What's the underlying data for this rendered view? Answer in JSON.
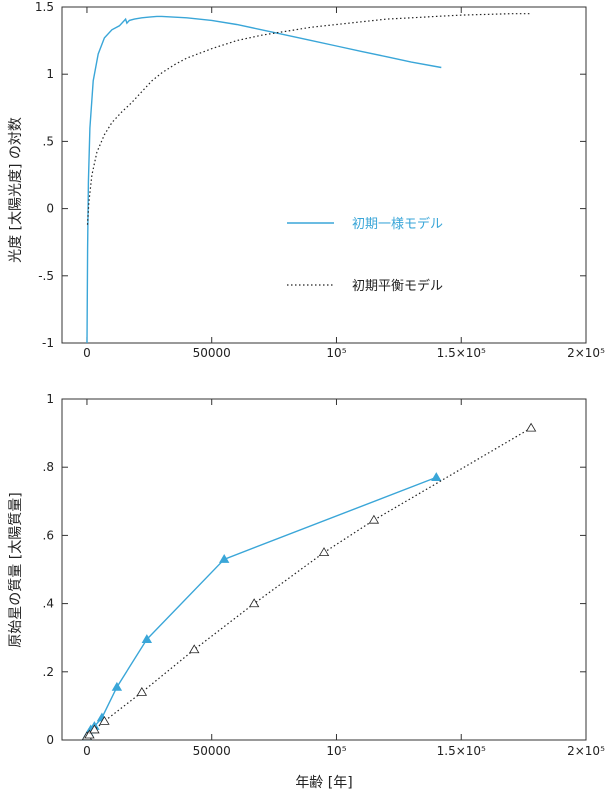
{
  "chart_data": [
    {
      "type": "line",
      "ylabel": "光度 [太陽光度] の対数",
      "xlabel": "",
      "xlim": [
        -10000,
        200000
      ],
      "ylim": [
        -1,
        1.5
      ],
      "x_tick_labels": [
        "0",
        "50000",
        "10⁵",
        "1.5×10⁵",
        "2×10⁵"
      ],
      "y_tick_labels": [
        "-1",
        "-.5",
        "0",
        ".5",
        "1",
        "1.5"
      ],
      "y_tick_values": [
        -1,
        -0.5,
        0,
        0.5,
        1,
        1.5
      ],
      "x_tick_values": [
        0,
        50000,
        100000,
        150000,
        200000
      ],
      "legend_position": "center-right",
      "series": [
        {
          "name": "初期一様モデル",
          "color": "#3aa6d8",
          "style": "solid",
          "x": [
            0,
            250,
            600,
            1200,
            2500,
            4500,
            7000,
            10000,
            13000,
            15500,
            16000,
            17000,
            19000,
            22000,
            25000,
            28000,
            30000,
            40000,
            50000,
            60000,
            70000,
            80000,
            90000,
            100000,
            110000,
            120000,
            130000,
            142000
          ],
          "y": [
            -1.0,
            -0.3,
            0.2,
            0.6,
            0.95,
            1.15,
            1.27,
            1.33,
            1.36,
            1.41,
            1.38,
            1.4,
            1.41,
            1.42,
            1.425,
            1.43,
            1.43,
            1.42,
            1.4,
            1.37,
            1.33,
            1.29,
            1.25,
            1.21,
            1.17,
            1.13,
            1.09,
            1.05
          ]
        },
        {
          "name": "初期平衡モデル",
          "color": "#222222",
          "style": "dotted",
          "x": [
            200,
            800,
            2000,
            4000,
            7000,
            10000,
            14000,
            18000,
            22000,
            26000,
            30000,
            35000,
            40000,
            50000,
            60000,
            70000,
            80000,
            90000,
            100000,
            110000,
            120000,
            130000,
            140000,
            150000,
            160000,
            170000,
            178000
          ],
          "y": [
            -0.12,
            0.05,
            0.25,
            0.42,
            0.55,
            0.64,
            0.72,
            0.79,
            0.87,
            0.95,
            1.01,
            1.07,
            1.12,
            1.19,
            1.25,
            1.29,
            1.32,
            1.35,
            1.37,
            1.39,
            1.41,
            1.42,
            1.43,
            1.44,
            1.445,
            1.45,
            1.45
          ]
        }
      ]
    },
    {
      "type": "line",
      "ylabel": "原始星の質量 [太陽質量]",
      "xlabel": "年齢 [年]",
      "xlim": [
        -10000,
        200000
      ],
      "ylim": [
        0,
        1
      ],
      "x_tick_labels": [
        "0",
        "50000",
        "10⁵",
        "1.5×10⁵",
        "2×10⁵"
      ],
      "y_tick_labels": [
        "0",
        ".2",
        ".4",
        ".6",
        ".8",
        "1"
      ],
      "y_tick_values": [
        0,
        0.2,
        0.4,
        0.6,
        0.8,
        1
      ],
      "x_tick_values": [
        0,
        50000,
        100000,
        150000,
        200000
      ],
      "series": [
        {
          "color": "#3aa6d8",
          "style": "solid",
          "marker": "filled-triangle",
          "x": [
            0,
            700,
            1500,
            3000,
            6000,
            12000,
            24000,
            55000,
            140000
          ],
          "y": [
            0.01,
            0.02,
            0.03,
            0.04,
            0.065,
            0.155,
            0.295,
            0.53,
            0.77
          ]
        },
        {
          "color": "#222222",
          "style": "dotted",
          "marker": "open-triangle",
          "x": [
            0,
            1000,
            3000,
            7000,
            22000,
            43000,
            67000,
            95000,
            115000,
            178000
          ],
          "y": [
            0.01,
            0.015,
            0.03,
            0.055,
            0.14,
            0.265,
            0.4,
            0.55,
            0.645,
            0.915
          ]
        }
      ]
    }
  ]
}
